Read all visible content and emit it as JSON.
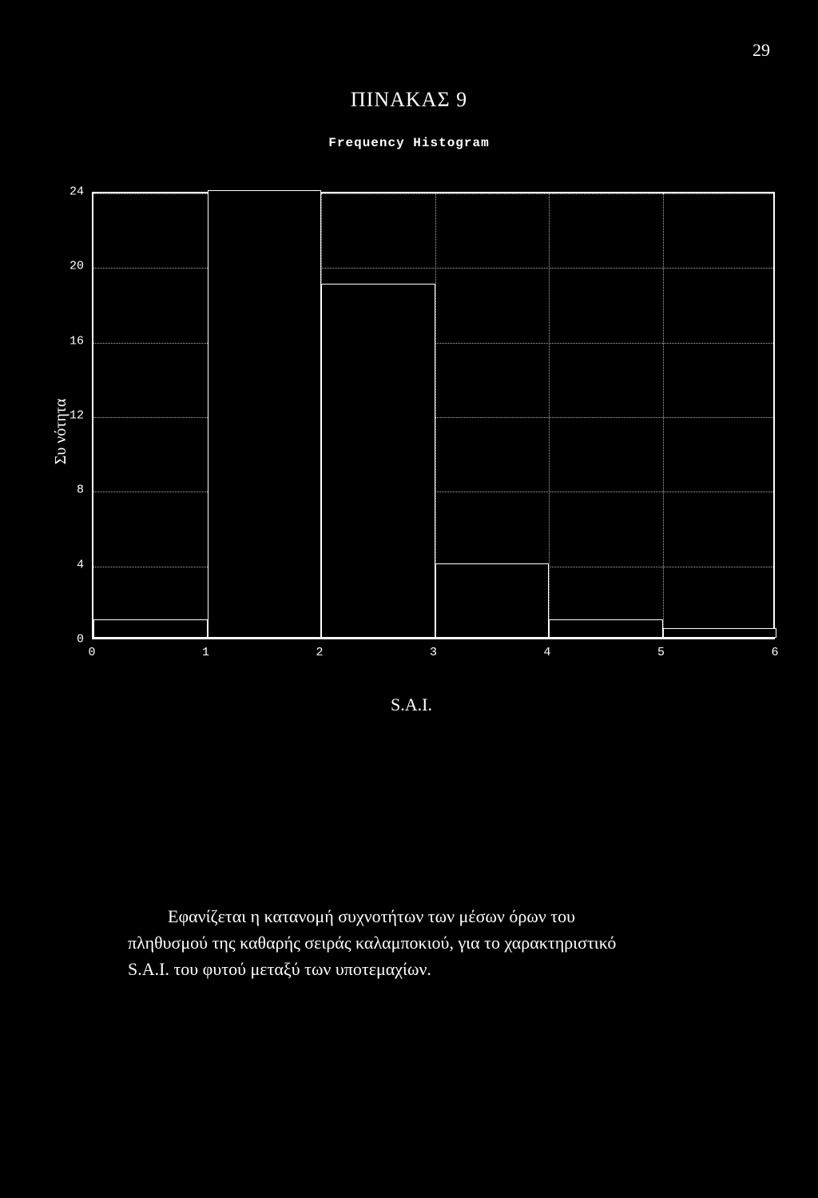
{
  "page_number": "29",
  "main_title": "ΠΙΝΑΚΑΣ 9",
  "chart": {
    "type": "histogram",
    "title": "Frequency Histogram",
    "y_axis_label": "Συ νότητα",
    "x_axis_title": "S.A.I.",
    "background_color": "#000000",
    "border_color": "#ffffff",
    "grid_color": "#ffffff",
    "text_color": "#ffffff",
    "tick_fontsize": 15,
    "title_fontsize": 16,
    "label_fontsize": 20,
    "xlim": [
      0,
      6
    ],
    "ylim": [
      0,
      24
    ],
    "ytick_step": 4,
    "xtick_step": 1,
    "y_ticks": [
      0,
      4,
      8,
      12,
      16,
      20,
      24
    ],
    "x_ticks": [
      0,
      1,
      2,
      3,
      4,
      5,
      6
    ],
    "bars": [
      {
        "x_start": 0,
        "x_end": 1,
        "value": 1
      },
      {
        "x_start": 1,
        "x_end": 2,
        "value": 24
      },
      {
        "x_start": 2,
        "x_end": 3,
        "value": 19
      },
      {
        "x_start": 3,
        "x_end": 4,
        "value": 4
      },
      {
        "x_start": 4,
        "x_end": 5,
        "value": 1
      },
      {
        "x_start": 5,
        "x_end": 6,
        "value": 0.5
      }
    ]
  },
  "caption": {
    "line1": "Εφανίζεται η κατανομή συχνοτήτων των μέσων όρων του",
    "line2": "πληθυσμού της καθαρής σειράς καλαμποκιού, για το χαρακτηριστικό",
    "line3": "S.A.I. του φυτού μεταξύ των υποτεμαχίων."
  }
}
